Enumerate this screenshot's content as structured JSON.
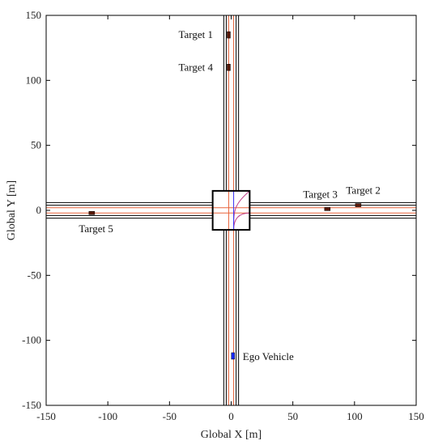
{
  "chart_data": {
    "type": "scatter",
    "title": "",
    "xlabel": "Global X [m]",
    "ylabel": "Global Y [m]",
    "xlim": [
      -150,
      150
    ],
    "ylim": [
      -150,
      150
    ],
    "xticks": [
      -150,
      -100,
      -50,
      0,
      50,
      100,
      150
    ],
    "yticks": [
      -150,
      -100,
      -50,
      0,
      50,
      100,
      150
    ],
    "grid": false,
    "colors": {
      "road_edge": "#000000",
      "lane_center": "#e8643c",
      "intersection_path": "#c0408a",
      "target_vehicle": "#5a1a0a",
      "ego_vehicle": "#1a2cff"
    },
    "road": {
      "vertical_edges_x": [
        -6,
        -4,
        4,
        6
      ],
      "horizontal_edges_y": [
        -6,
        -4,
        4,
        6
      ],
      "lane_center_x": [
        -2,
        2
      ],
      "lane_center_y": [
        -2,
        2
      ],
      "intersection_box": {
        "xmin": -15,
        "xmax": 15,
        "ymin": -15,
        "ymax": 15
      }
    },
    "vehicles": [
      {
        "label": "Target 1",
        "x": -2,
        "y": 135
      },
      {
        "label": "Target 4",
        "x": -2,
        "y": 110
      },
      {
        "label": "Target 3",
        "x": 78,
        "y": 1
      },
      {
        "label": "Target 2",
        "x": 103,
        "y": 4
      },
      {
        "label": "Target 5",
        "x": -113,
        "y": -2
      },
      {
        "label": "Ego Vehicle",
        "x": 1.5,
        "y": -112
      }
    ]
  }
}
